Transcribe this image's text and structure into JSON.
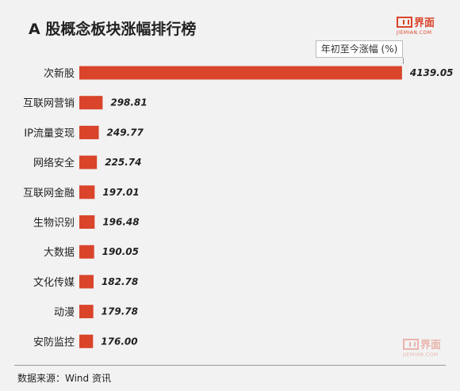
{
  "title": "A 股概念板块涨幅排行榜",
  "logo": {
    "name": "界面",
    "sub": "JIEMIAN.COM"
  },
  "legend_label": "年初至今涨幅 (%)",
  "source": "数据来源：Wind 资讯",
  "colors": {
    "bar": "#d9442b",
    "background": "#f2f2f2"
  },
  "chart_data": {
    "type": "bar",
    "orientation": "horizontal",
    "title": "A 股概念板块涨幅排行榜",
    "categories": [
      "次新股",
      "互联网营销",
      "IP流量变现",
      "网络安全",
      "互联网金融",
      "生物识别",
      "大数据",
      "文化传媒",
      "动漫",
      "安防监控"
    ],
    "values": [
      4139.05,
      298.81,
      249.77,
      225.74,
      197.01,
      196.48,
      190.05,
      182.78,
      179.78,
      176.0
    ],
    "value_labels": [
      "4139.05",
      "298.81",
      "249.77",
      "225.74",
      "197.01",
      "196.48",
      "190.05",
      "182.78",
      "179.78",
      "176.00"
    ],
    "series": [
      {
        "name": "年初至今涨幅 (%)"
      }
    ],
    "grid": false
  }
}
